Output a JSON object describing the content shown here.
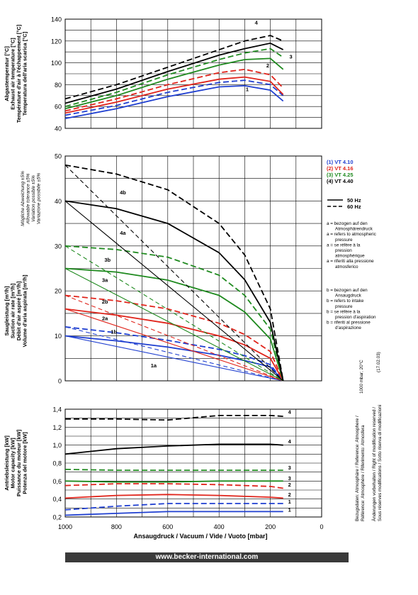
{
  "footer": {
    "url": "www.becker-international.com"
  },
  "side_notes": {
    "reference_lines": [
      "Bezugsdaten: Atmosphäre / Reference: Atmosphere /",
      "Référence: Atmosphère / Riferimento: Atmosfera"
    ],
    "reference_value": "1000 mbar; 20°C",
    "modification_lines": [
      "Änderungen vorbehalten / Right of modification reserved /",
      "Sous réserves modifications / Sotto riserva di modificazioni"
    ],
    "date": "(17.02.03)"
  },
  "legend": {
    "models": [
      {
        "label": "(1)  VT 4.10",
        "color": "#1f3fd0"
      },
      {
        "label": "(2)  VT 4.16",
        "color": "#e0241b"
      },
      {
        "label": "(3)  VT 4.25",
        "color": "#1f8a1f"
      },
      {
        "label": "(4)  VT 4.40",
        "color": "#000000"
      }
    ],
    "frequencies": [
      {
        "label": "50 Hz",
        "style": "solid"
      },
      {
        "label": "60 Hz",
        "style": "dashed"
      }
    ],
    "note_a": [
      "a = bezogen auf den",
      "Atmosphärendruck",
      "a = refers to atmospheric",
      "pressure",
      "a = se réfère à la",
      "pression",
      "atmosphérique",
      "a = riferiti alla pressione",
      "atmosferico"
    ],
    "note_b": [
      "b = bezogen auf den",
      "Ansaugdruck",
      "b = refers to intake",
      "pressure",
      "b = se réfère à la",
      "pression d'aspiration",
      "b = riferiti al pressione",
      "d'aspirazione"
    ]
  },
  "chart_data": [
    {
      "type": "line",
      "name": "exhaust-temperature",
      "ylabel_lines": [
        "Abgastemperatur [°C]",
        "Exhaust air temperature [°C]",
        "Température d'air à l'échappement [°C]",
        "Temperatura dell'aria scarica [°C]"
      ],
      "ylim": [
        40,
        140
      ],
      "yticks": [
        40,
        60,
        80,
        100,
        120,
        140
      ],
      "xlim": [
        1000,
        0
      ],
      "grid": true,
      "series": [
        {
          "model": "1",
          "freq": "50 Hz",
          "color": "#1f3fd0",
          "x": [
            1000,
            800,
            600,
            400,
            300,
            200,
            150
          ],
          "y": [
            49,
            58,
            69,
            78,
            79,
            75,
            65
          ]
        },
        {
          "model": "1",
          "freq": "60 Hz",
          "color": "#1f3fd0",
          "x": [
            1000,
            800,
            600,
            400,
            300,
            200,
            150
          ],
          "y": [
            52,
            61,
            73,
            82,
            84,
            80,
            70
          ]
        },
        {
          "model": "2",
          "freq": "50 Hz",
          "color": "#e0241b",
          "x": [
            1000,
            800,
            600,
            400,
            300,
            200,
            150
          ],
          "y": [
            54,
            64,
            76,
            85,
            87,
            83,
            71
          ]
        },
        {
          "model": "2",
          "freq": "60 Hz",
          "color": "#e0241b",
          "x": [
            1000,
            800,
            600,
            400,
            300,
            200,
            150
          ],
          "y": [
            56,
            67,
            80,
            91,
            94,
            89,
            77
          ]
        },
        {
          "model": "3",
          "freq": "50 Hz",
          "color": "#1f8a1f",
          "x": [
            1000,
            800,
            600,
            400,
            300,
            200,
            150
          ],
          "y": [
            58,
            70,
            85,
            98,
            103,
            104,
            94
          ]
        },
        {
          "model": "3",
          "freq": "60 Hz",
          "color": "#1f8a1f",
          "x": [
            1000,
            800,
            600,
            400,
            300,
            200,
            150
          ],
          "y": [
            60,
            73,
            89,
            103,
            109,
            113,
            105
          ]
        },
        {
          "model": "4",
          "freq": "50 Hz",
          "color": "#000000",
          "x": [
            1000,
            800,
            600,
            400,
            300,
            200,
            150
          ],
          "y": [
            63,
            76,
            92,
            107,
            113,
            118,
            112
          ]
        },
        {
          "model": "4",
          "freq": "60 Hz",
          "color": "#000000",
          "x": [
            1000,
            800,
            600,
            400,
            300,
            200,
            150
          ],
          "y": [
            67,
            80,
            96,
            112,
            120,
            125,
            120
          ]
        }
      ],
      "annotations": [
        {
          "text": "1",
          "x": 290,
          "y": 74
        },
        {
          "text": "2",
          "x": 210,
          "y": 96
        },
        {
          "text": "3",
          "x": 120,
          "y": 104
        },
        {
          "text": "4",
          "x": 255,
          "y": 135
        }
      ]
    },
    {
      "type": "line",
      "name": "suction-capacity",
      "ylabel_lines": [
        "Saugleistung [m³/h]",
        "Suction air rate [m³/h]",
        "Débit d'air aspiré [m³/h]",
        "Volume d'aria aspirata [m³/h]"
      ],
      "tolerance_lines": [
        "Mögliche Abweichung ±5%",
        "Allowable tolerance ±5%",
        "Variation possible ±5%",
        "Variazione possibile ±5%"
      ],
      "ylim": [
        0,
        50
      ],
      "yticks": [
        0,
        10,
        20,
        30,
        40,
        50
      ],
      "xlim": [
        1000,
        0
      ],
      "grid": true,
      "series": [
        {
          "id": "1a",
          "model": "1",
          "freq": "50 Hz",
          "color": "#1f3fd0",
          "x": [
            1000,
            800,
            600,
            400,
            300,
            200,
            150
          ],
          "y": [
            10,
            8.9,
            7.5,
            5.7,
            4.5,
            3.1,
            0
          ]
        },
        {
          "id": "1a",
          "model": "1",
          "freq": "60 Hz",
          "color": "#1f3fd0",
          "x": [
            1000,
            800,
            600,
            400,
            300,
            200,
            150
          ],
          "y": [
            12,
            10.7,
            9,
            7,
            5.6,
            3.6,
            0
          ]
        },
        {
          "id": "1b",
          "model": "1",
          "freq": "50 Hz",
          "color": "#1f3fd0",
          "x": [
            1000,
            150
          ],
          "y": [
            10,
            0
          ]
        },
        {
          "id": "1b",
          "model": "1",
          "freq": "60 Hz",
          "color": "#1f3fd0",
          "x": [
            1000,
            150
          ],
          "y": [
            12,
            0
          ]
        },
        {
          "id": "2a",
          "model": "2",
          "freq": "50 Hz",
          "color": "#e0241b",
          "x": [
            1000,
            800,
            600,
            400,
            300,
            200,
            150
          ],
          "y": [
            16,
            14.6,
            12.8,
            10,
            8,
            5,
            0
          ]
        },
        {
          "id": "2a",
          "model": "2",
          "freq": "60 Hz",
          "color": "#e0241b",
          "x": [
            1000,
            800,
            600,
            400,
            300,
            200,
            150
          ],
          "y": [
            19,
            17.8,
            16,
            12.8,
            10.3,
            6.5,
            0
          ]
        },
        {
          "id": "2b",
          "model": "2",
          "freq": "50 Hz",
          "color": "#e0241b",
          "x": [
            1000,
            150
          ],
          "y": [
            16,
            0
          ]
        },
        {
          "id": "2b",
          "model": "2",
          "freq": "60 Hz",
          "color": "#e0241b",
          "x": [
            1000,
            150
          ],
          "y": [
            19,
            0
          ]
        },
        {
          "id": "3a",
          "model": "3",
          "freq": "50 Hz",
          "color": "#1f8a1f",
          "x": [
            1000,
            800,
            600,
            400,
            300,
            200,
            150
          ],
          "y": [
            25,
            24.2,
            22.4,
            19,
            15.3,
            9.3,
            0
          ]
        },
        {
          "id": "3a",
          "model": "3",
          "freq": "60 Hz",
          "color": "#1f8a1f",
          "x": [
            1000,
            800,
            600,
            400,
            300,
            200,
            150
          ],
          "y": [
            30,
            29.2,
            27.5,
            23.5,
            19,
            11.5,
            0
          ]
        },
        {
          "id": "3b",
          "model": "3",
          "freq": "50 Hz",
          "color": "#1f8a1f",
          "x": [
            1000,
            150
          ],
          "y": [
            25,
            0
          ]
        },
        {
          "id": "3b",
          "model": "3",
          "freq": "60 Hz",
          "color": "#1f8a1f",
          "x": [
            1000,
            150
          ],
          "y": [
            30,
            0
          ]
        },
        {
          "id": "4a",
          "model": "4",
          "freq": "50 Hz",
          "color": "#000000",
          "x": [
            1000,
            800,
            600,
            400,
            300,
            200,
            150
          ],
          "y": [
            40,
            38.3,
            35,
            28.5,
            22.5,
            13,
            0
          ]
        },
        {
          "id": "4a",
          "model": "4",
          "freq": "60 Hz",
          "color": "#000000",
          "x": [
            1000,
            800,
            600,
            400,
            300,
            200,
            150
          ],
          "y": [
            48,
            46,
            42.5,
            35,
            28,
            16,
            0
          ]
        },
        {
          "id": "4b",
          "model": "4",
          "freq": "50 Hz",
          "color": "#000000",
          "x": [
            1000,
            150
          ],
          "y": [
            40,
            0
          ]
        },
        {
          "id": "4b",
          "model": "4",
          "freq": "60 Hz",
          "color": "#000000",
          "x": [
            1000,
            150
          ],
          "y": [
            48,
            0
          ]
        }
      ],
      "annotations": [
        {
          "text": "4b",
          "x": 775,
          "y": 41.5
        },
        {
          "text": "4a",
          "x": 775,
          "y": 32.5
        },
        {
          "text": "3b",
          "x": 835,
          "y": 26.5
        },
        {
          "text": "3a",
          "x": 845,
          "y": 22
        },
        {
          "text": "2b",
          "x": 845,
          "y": 17.2
        },
        {
          "text": "2a",
          "x": 845,
          "y": 13.5
        },
        {
          "text": "1b",
          "x": 810,
          "y": 10.5
        },
        {
          "text": "1a",
          "x": 655,
          "y": 3
        }
      ]
    },
    {
      "type": "line",
      "name": "motor-capacity",
      "ylabel_lines": [
        "Antriebsleistung [kW]",
        "Motor capacity [kW]",
        "Puissance du moteur [kW]",
        "Potenza del motore [kW]"
      ],
      "ylim": [
        0.2,
        1.4
      ],
      "yticks": [
        0.2,
        0.4,
        0.6,
        0.8,
        1.0,
        1.2,
        1.4
      ],
      "ytick_labels": [
        "0,2",
        "0,4",
        "0,6",
        "0,8",
        "1,0",
        "1,2",
        "1,4"
      ],
      "xlim": [
        1000,
        0
      ],
      "xticks": [
        1000,
        800,
        600,
        400,
        200,
        0
      ],
      "xlabel": "Ansaugdruck / Vacuum / Vide / Vuoto     [mbar]",
      "grid": true,
      "series": [
        {
          "model": "1",
          "freq": "50 Hz",
          "color": "#1f3fd0",
          "x": [
            1000,
            800,
            600,
            400,
            200,
            150
          ],
          "y": [
            0.22,
            0.24,
            0.26,
            0.26,
            0.26,
            0.26
          ]
        },
        {
          "model": "1",
          "freq": "60 Hz",
          "color": "#1f3fd0",
          "x": [
            1000,
            800,
            600,
            400,
            200,
            150
          ],
          "y": [
            0.28,
            0.32,
            0.35,
            0.35,
            0.35,
            0.35
          ]
        },
        {
          "model": "2",
          "freq": "50 Hz",
          "color": "#e0241b",
          "x": [
            1000,
            800,
            600,
            400,
            200,
            150
          ],
          "y": [
            0.41,
            0.44,
            0.45,
            0.44,
            0.42,
            0.41
          ]
        },
        {
          "model": "2",
          "freq": "60 Hz",
          "color": "#e0241b",
          "x": [
            1000,
            800,
            600,
            400,
            200,
            150
          ],
          "y": [
            0.55,
            0.57,
            0.57,
            0.56,
            0.54,
            0.52
          ]
        },
        {
          "model": "3",
          "freq": "50 Hz",
          "color": "#1f8a1f",
          "x": [
            1000,
            800,
            600,
            400,
            200,
            150
          ],
          "y": [
            0.6,
            0.59,
            0.59,
            0.6,
            0.6,
            0.6
          ]
        },
        {
          "model": "3",
          "freq": "60 Hz",
          "color": "#1f8a1f",
          "x": [
            1000,
            800,
            600,
            400,
            200,
            150
          ],
          "y": [
            0.73,
            0.72,
            0.72,
            0.72,
            0.72,
            0.72
          ]
        },
        {
          "model": "4",
          "freq": "50 Hz",
          "color": "#000000",
          "x": [
            1000,
            800,
            600,
            400,
            200,
            150
          ],
          "y": [
            0.9,
            0.96,
            0.99,
            1.01,
            1.01,
            1.0
          ]
        },
        {
          "model": "4",
          "freq": "60 Hz",
          "color": "#000000",
          "x": [
            1000,
            800,
            600,
            400,
            200,
            150
          ],
          "y": [
            1.29,
            1.29,
            1.28,
            1.33,
            1.33,
            1.32
          ]
        }
      ],
      "annotations": [
        {
          "text": "1",
          "x": 125,
          "y": 0.26
        },
        {
          "text": "1",
          "x": 125,
          "y": 0.35
        },
        {
          "text": "2",
          "x": 125,
          "y": 0.43
        },
        {
          "text": "2",
          "x": 125,
          "y": 0.54
        },
        {
          "text": "3",
          "x": 125,
          "y": 0.61
        },
        {
          "text": "3",
          "x": 125,
          "y": 0.73
        },
        {
          "text": "4",
          "x": 125,
          "y": 1.02
        },
        {
          "text": "4",
          "x": 125,
          "y": 1.35
        }
      ]
    }
  ]
}
